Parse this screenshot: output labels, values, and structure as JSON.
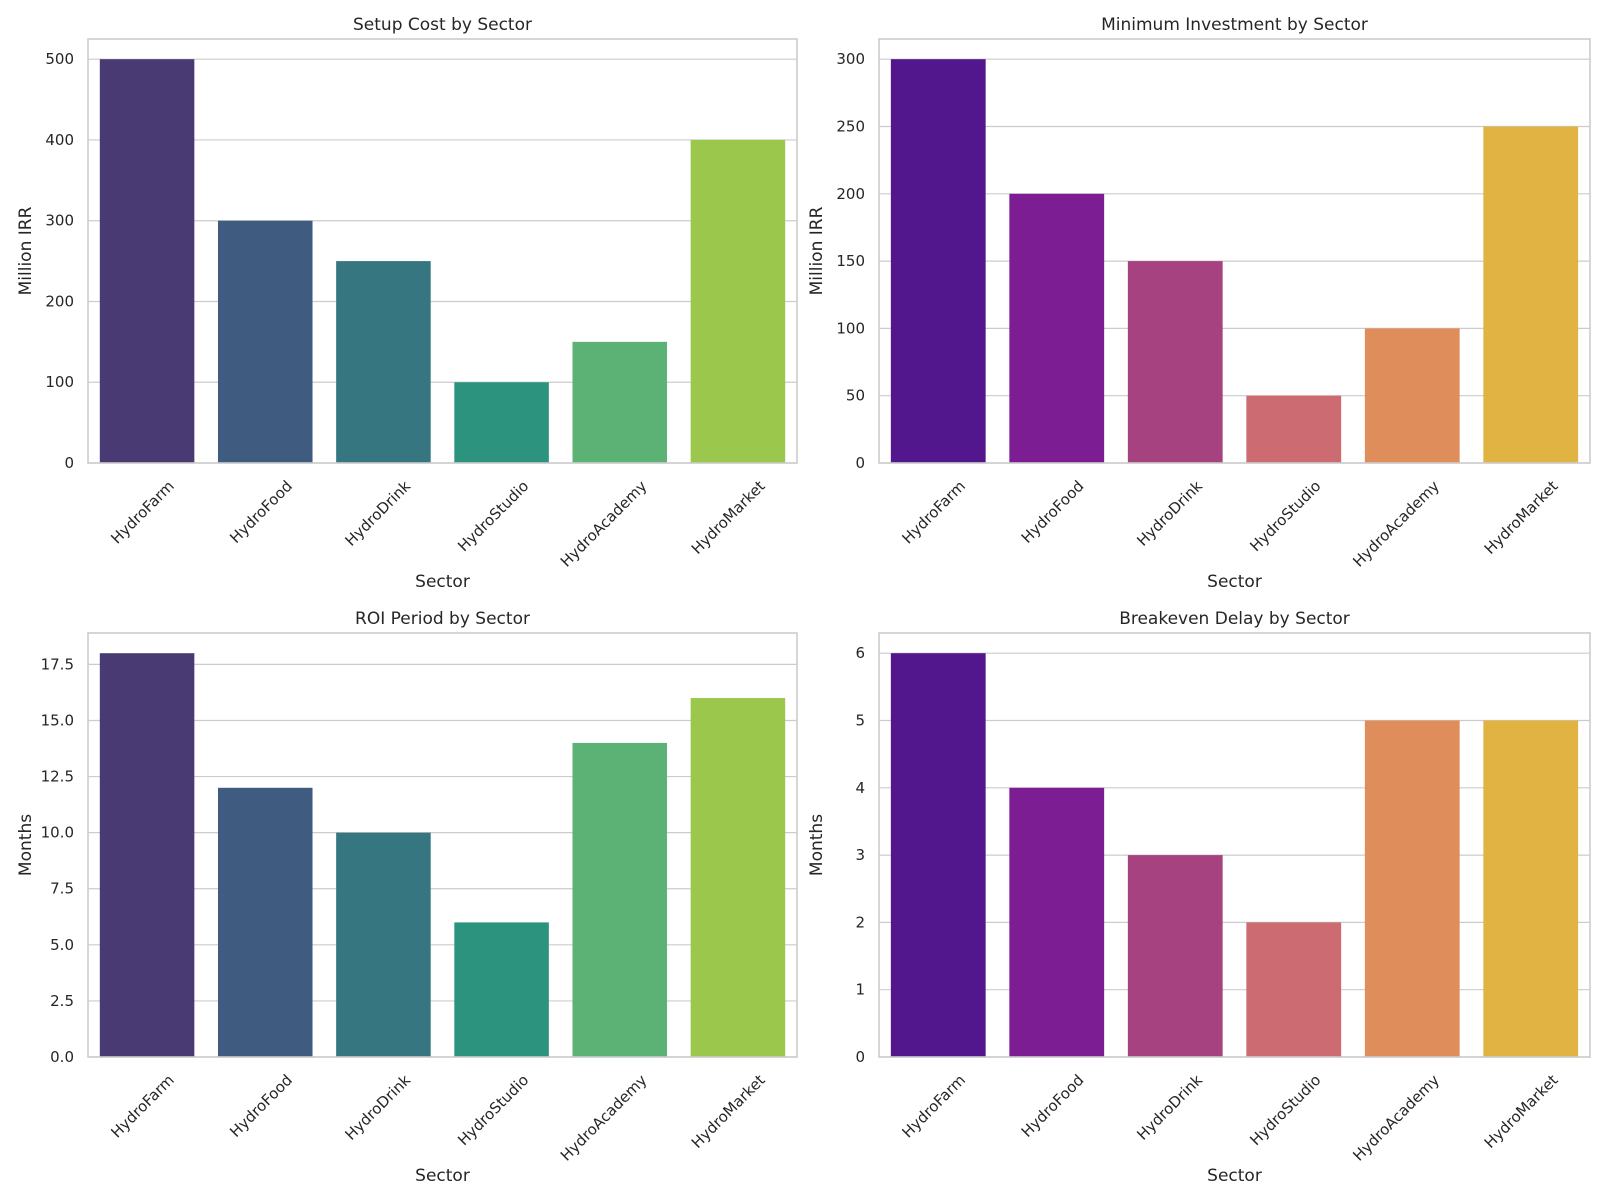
{
  "chart_data": [
    {
      "type": "bar",
      "title": "Setup Cost by Sector",
      "xlabel": "Sector",
      "ylabel": "Million IRR",
      "categories": [
        "HydroFarm",
        "HydroFood",
        "HydroDrink",
        "HydroStudio",
        "HydroAcademy",
        "HydroMarket"
      ],
      "values": [
        500,
        300,
        250,
        100,
        150,
        400
      ],
      "ylim": [
        0,
        525
      ],
      "yticks": [
        0,
        100,
        200,
        300,
        400,
        500
      ],
      "ytick_labels": [
        "0",
        "100",
        "200",
        "300",
        "400",
        "500"
      ],
      "grid": true,
      "palette": "viridis",
      "colors": [
        "#4a3a74",
        "#3f5c80",
        "#357680",
        "#2c937e",
        "#5bb274",
        "#9bc74d"
      ]
    },
    {
      "type": "bar",
      "title": "Minimum Investment by Sector",
      "xlabel": "Sector",
      "ylabel": "Million IRR",
      "categories": [
        "HydroFarm",
        "HydroFood",
        "HydroDrink",
        "HydroStudio",
        "HydroAcademy",
        "HydroMarket"
      ],
      "values": [
        300,
        200,
        150,
        50,
        100,
        250
      ],
      "ylim": [
        0,
        315
      ],
      "yticks": [
        0,
        50,
        100,
        150,
        200,
        250,
        300
      ],
      "ytick_labels": [
        "0",
        "50",
        "100",
        "150",
        "200",
        "250",
        "300"
      ],
      "grid": true,
      "palette": "plasma",
      "colors": [
        "#52178d",
        "#7d1d94",
        "#a64280",
        "#cd6b73",
        "#e08d5c",
        "#e0b342"
      ]
    },
    {
      "type": "bar",
      "title": "ROI Period by Sector",
      "xlabel": "Sector",
      "ylabel": "Months",
      "categories": [
        "HydroFarm",
        "HydroFood",
        "HydroDrink",
        "HydroStudio",
        "HydroAcademy",
        "HydroMarket"
      ],
      "values": [
        18,
        12,
        10,
        6,
        14,
        16
      ],
      "ylim": [
        0,
        18.9
      ],
      "yticks": [
        0,
        2.5,
        5,
        7.5,
        10,
        12.5,
        15,
        17.5
      ],
      "ytick_labels": [
        "0.0",
        "2.5",
        "5.0",
        "7.5",
        "10.0",
        "12.5",
        "15.0",
        "17.5"
      ],
      "grid": true,
      "palette": "viridis",
      "colors": [
        "#4a3a74",
        "#3f5c80",
        "#357680",
        "#2c937e",
        "#5bb274",
        "#9bc74d"
      ]
    },
    {
      "type": "bar",
      "title": "Breakeven Delay by Sector",
      "xlabel": "Sector",
      "ylabel": "Months",
      "categories": [
        "HydroFarm",
        "HydroFood",
        "HydroDrink",
        "HydroStudio",
        "HydroAcademy",
        "HydroMarket"
      ],
      "values": [
        6,
        4,
        3,
        2,
        5,
        5
      ],
      "ylim": [
        0,
        6.3
      ],
      "yticks": [
        0,
        1,
        2,
        3,
        4,
        5,
        6
      ],
      "ytick_labels": [
        "0",
        "1",
        "2",
        "3",
        "4",
        "5",
        "6"
      ],
      "grid": true,
      "palette": "plasma",
      "colors": [
        "#52178d",
        "#7d1d94",
        "#a64280",
        "#cd6b73",
        "#e08d5c",
        "#e0b342"
      ]
    }
  ]
}
